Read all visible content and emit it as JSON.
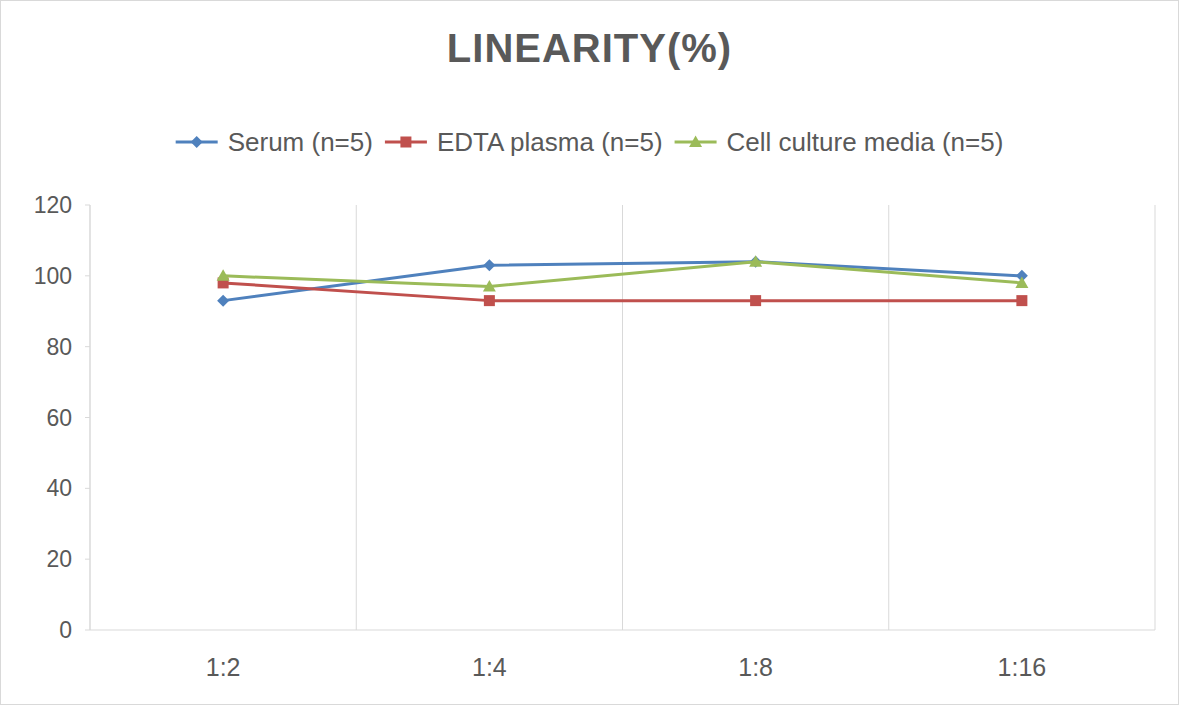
{
  "chart_data": {
    "type": "line",
    "title": "LINEARITY(%)",
    "categories": [
      "1:2",
      "1:4",
      "1:8",
      "1:16"
    ],
    "series": [
      {
        "name": "Serum (n=5)",
        "color": "#4f81bd",
        "marker": "diamond",
        "values": [
          93,
          103,
          104,
          100
        ]
      },
      {
        "name": "EDTA plasma (n=5)",
        "color": "#c0504d",
        "marker": "square",
        "values": [
          98,
          93,
          93,
          93
        ]
      },
      {
        "name": "Cell culture media (n=5)",
        "color": "#9bbb59",
        "marker": "triangle",
        "values": [
          100,
          97,
          104,
          98
        ]
      }
    ],
    "ylim": [
      0,
      120
    ],
    "yticks": [
      0,
      20,
      40,
      60,
      80,
      100,
      120
    ],
    "grid": true,
    "legend": "top"
  }
}
